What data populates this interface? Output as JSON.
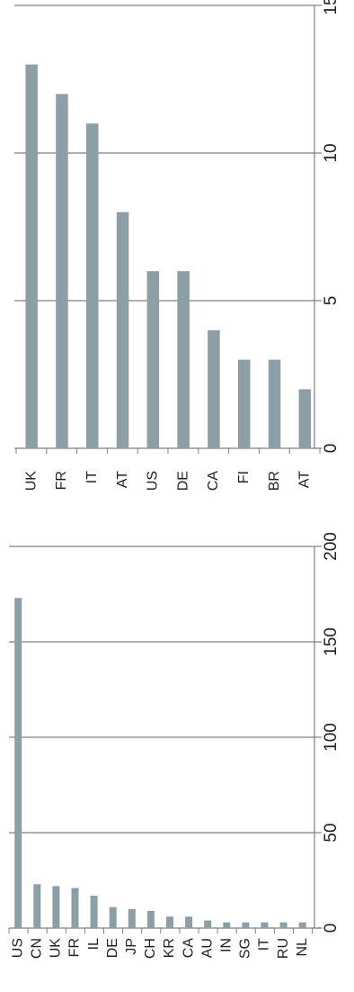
{
  "colors": {
    "bar": "#8c9fa6",
    "axis": "#808080",
    "gridline": "#808080",
    "text": "#222222",
    "background": "#ffffff"
  },
  "chart_data": [
    {
      "type": "bar",
      "orientation": "rotated",
      "title": "",
      "xlabel": "",
      "ylabel": "",
      "categories": [
        "UK",
        "FR",
        "IT",
        "AT",
        "US",
        "DE",
        "CA",
        "FI",
        "BR",
        "AT"
      ],
      "values": [
        13,
        12,
        11,
        8,
        6,
        6,
        4,
        3,
        3,
        2
      ],
      "ylim": [
        0,
        15
      ],
      "ticks": [
        0,
        5,
        10,
        15
      ],
      "grid": true,
      "legend": "none"
    },
    {
      "type": "bar",
      "orientation": "rotated",
      "title": "",
      "xlabel": "",
      "ylabel": "",
      "categories": [
        "US",
        "CN",
        "UK",
        "FR",
        "IL",
        "DE",
        "JP",
        "CH",
        "KR",
        "CA",
        "AU",
        "IN",
        "SG",
        "IT",
        "RU",
        "NL"
      ],
      "values": [
        173,
        23,
        22,
        21,
        17,
        11,
        10,
        9,
        6,
        6,
        4,
        3,
        3,
        3,
        3,
        3
      ],
      "ylim": [
        0,
        200
      ],
      "ticks": [
        0,
        50,
        100,
        150,
        200
      ],
      "grid": true,
      "legend": "none"
    }
  ]
}
